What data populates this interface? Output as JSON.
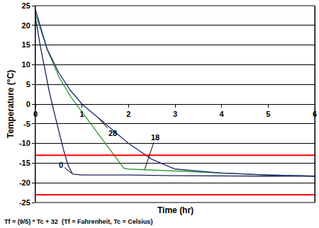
{
  "chart_data": {
    "type": "line",
    "x_label": "Time (hr)",
    "y_label": "Temperature (°C)",
    "footnote": "Tf = (9/5) * Tc + 32  {Tf = Fahrenheit, Tc = Celsius}",
    "xlim": [
      0,
      6
    ],
    "xticks": [
      0,
      1,
      2,
      3,
      4,
      5,
      6
    ],
    "ylim": [
      -25,
      25
    ],
    "yticks": [
      -25,
      -20,
      -15,
      -10,
      -5,
      0,
      5,
      10,
      15,
      20,
      25
    ],
    "grid": "y",
    "series": [
      {
        "color": "#1f1f5a",
        "x": [
          0,
          0.1,
          0.2,
          0.3,
          0.4,
          0.5,
          0.6,
          0.7,
          0.8,
          1,
          2,
          3,
          4,
          5,
          6
        ],
        "values": [
          22,
          15,
          9,
          3,
          -2,
          -7,
          -11.5,
          -15.5,
          -17.8,
          -18,
          -18,
          -18.2,
          -18.3,
          -18.3,
          -18.3
        ]
      },
      {
        "color": "#2e9a2e",
        "x": [
          0,
          0.25,
          0.5,
          0.75,
          1,
          1.25,
          1.5,
          1.75,
          1.9,
          2,
          3,
          4,
          5,
          6
        ],
        "values": [
          23,
          14,
          7,
          2,
          -2,
          -6,
          -10,
          -14,
          -16.3,
          -16.5,
          -17,
          -17.5,
          -18,
          -18.3
        ]
      },
      {
        "color": "#1f2a7a",
        "x": [
          0,
          0.25,
          0.5,
          0.75,
          1,
          1.5,
          2,
          2.5,
          3,
          4,
          5,
          6
        ],
        "values": [
          24,
          14,
          8,
          3.5,
          0,
          -5,
          -10,
          -14,
          -16.5,
          -17.5,
          -18,
          -18.3
        ]
      }
    ],
    "reference_lines": [
      {
        "y": -13,
        "color": "#ff0000"
      },
      {
        "y": -23,
        "color": "#ff0000"
      }
    ],
    "annotations": [
      {
        "text": "0",
        "x": 0.78,
        "y": -17.6
      },
      {
        "text": "18",
        "x": 2.35,
        "y": -16.5
      },
      {
        "text": "28",
        "x": 1.35,
        "y": -3.5
      }
    ]
  }
}
